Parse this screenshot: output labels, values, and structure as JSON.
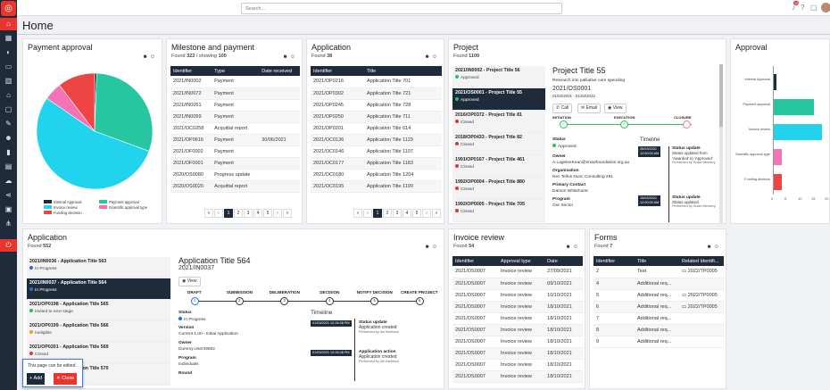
{
  "app": {
    "title": "Home"
  },
  "search": {
    "placeholder": "Search..."
  },
  "topbar": {
    "notification_count": "10"
  },
  "payment_approval": {
    "title": "Payment approval",
    "legend": [
      {
        "label": "Internal Approval",
        "color": "#1e2b3a"
      },
      {
        "label": "Payment approval",
        "color": "#26c6a0"
      },
      {
        "label": "Invoice review",
        "color": "#22d3ee"
      },
      {
        "label": "Scientific approval type",
        "color": "#f472b6"
      },
      {
        "label": "Funding decision",
        "color": "#ef4444"
      }
    ]
  },
  "milestone": {
    "title": "Milestone and payment",
    "found_label": "Found ",
    "found": "322",
    "showing_label": " / showing ",
    "showing": "100",
    "columns": [
      "Identifier",
      "Type",
      "Date received"
    ],
    "rows": [
      [
        "2021/IN0002",
        "Payment",
        ""
      ],
      [
        "2021/IN0072",
        "Payment",
        ""
      ],
      [
        "2021/IN0051",
        "Payment",
        ""
      ],
      [
        "2021/IN0059",
        "Payment",
        ""
      ],
      [
        "2021/OC0258",
        "Acquittal report",
        ""
      ],
      [
        "2021/OP0616",
        "Payment",
        "30/06/2021"
      ],
      [
        "2021/OF0002",
        "Payment",
        ""
      ],
      [
        "2021/OF0001",
        "Payment",
        ""
      ],
      [
        "2020/OS0080",
        "Progress update",
        ""
      ],
      [
        "2020/OS0020",
        "Acquittal report",
        ""
      ]
    ],
    "pages": [
      "«",
      "‹",
      "1",
      "2",
      "3",
      "4",
      "5",
      "›",
      "»"
    ]
  },
  "application": {
    "title": "Application",
    "found_label": "Found ",
    "found": "38",
    "columns": [
      "Identifier",
      "Title"
    ],
    "rows": [
      [
        "2021/OP0216",
        "Application Title 701"
      ],
      [
        "2021/OP0302",
        "Application Title 721"
      ],
      [
        "2021/OP0245",
        "Application Title 728"
      ],
      [
        "2021/OP0250",
        "Application Title 711"
      ],
      [
        "2021/OP0201",
        "Application Title 614"
      ],
      [
        "2021/OC0136",
        "Application Title 1123"
      ],
      [
        "2021/OC0146",
        "Application Title 1107"
      ],
      [
        "2021/OC0177",
        "Application Title 1183"
      ],
      [
        "2021/OC0180",
        "Application Title 1204"
      ],
      [
        "2021/OC0195",
        "Application Title 1199"
      ]
    ],
    "pages": [
      "«",
      "‹",
      "1",
      "2",
      "3",
      "4",
      "5",
      "›",
      "»"
    ]
  },
  "project": {
    "title": "Project",
    "found_label": "Found ",
    "found": "1109",
    "items": [
      {
        "name": "2021/IN0002 - Project Title 56",
        "status": "Approved",
        "color": "#22c55e"
      },
      {
        "name": "2021/OS0001 - Project Title 55",
        "status": "Approved",
        "color": "#22c55e"
      },
      {
        "name": "2016/OP0372 - Project Title 81",
        "status": "Closed",
        "color": "#e8352e"
      },
      {
        "name": "2018/OP0433 - Project Title 82",
        "status": "Closed",
        "color": "#e8352e"
      },
      {
        "name": "1991/OP0167 - Project Title 461",
        "status": "Closed",
        "color": "#e8352e"
      },
      {
        "name": "1992/OP0004 - Project Title 880",
        "status": "Closed",
        "color": "#e8352e"
      },
      {
        "name": "1992/OP0005 - Project Title 705",
        "status": "Closed",
        "color": "#e8352e"
      }
    ],
    "detail": {
      "title": "Project Title 55",
      "desc": "Research into palliative care spending",
      "id": "2021/OS0001",
      "dates": "01/03/2021 - 01/03/2022",
      "buttons": [
        "Call",
        "Email",
        "View"
      ],
      "stages": [
        "INITIATION",
        "EXECUTION",
        "CLOSURE"
      ],
      "status_label": "Status",
      "status": "Approved",
      "owner_label": "Owner",
      "owner": "A.LageleeKean@snowfoundation.org.au",
      "org_label": "Organisation",
      "org": "Nec Tellus Nunc Consulting 281",
      "contact_label": "Primary Contact",
      "contact": "Damon Whitehurst",
      "program_label": "Program",
      "program": "Our Sector",
      "timeline_label": "Timeline",
      "timeline": [
        {
          "date": "25/03/2021",
          "time": "12:00:00 AM",
          "title": "Status update",
          "text": "Status updated from 'Awarded' to 'Approved'",
          "by": "Performed by Susie Messery"
        },
        {
          "date": "15/03/2021",
          "time": "12:00:00 AM",
          "title": "Status update",
          "text": "Status updated",
          "by": "Performed by Susie Messery"
        }
      ]
    }
  },
  "approval": {
    "title": "Approval",
    "chart_data": {
      "type": "bar",
      "orientation": "horizontal",
      "categories": [
        "Internal Approval",
        "Payment approval",
        "Invoice review",
        "Scientific approval type",
        "Funding decision"
      ],
      "values": [
        1,
        15,
        18,
        3,
        3
      ],
      "colors": [
        "#1e2b3a",
        "#26c6a0",
        "#22d3ee",
        "#f472b6",
        "#ef4444"
      ],
      "xticks": [
        "0",
        "5",
        "10",
        "15",
        "20"
      ],
      "xlim": [
        0,
        20
      ]
    }
  },
  "application2": {
    "title": "Application",
    "found_label": "Found ",
    "found": "552",
    "items": [
      {
        "name": "2021/IN0036 - Application Title 563",
        "status": "In Progress",
        "color": "#1e6fd9"
      },
      {
        "name": "2021/IN0037 - Application Title 564",
        "status": "In Progress",
        "color": "#1e6fd9"
      },
      {
        "name": "2021/OP0198 - Application Title 565",
        "status": "Invited to next stage",
        "color": "#22c55e"
      },
      {
        "name": "2021/OP0199 - Application Title 566",
        "status": "Ineligible",
        "color": "#f59e0b"
      },
      {
        "name": "2021/OP0201 - Application Title 569",
        "status": "Closed",
        "color": "#e8352e"
      },
      {
        "name": "2021/OP0202 - Application Title 570",
        "status": "",
        "color": "#999"
      }
    ],
    "detail": {
      "title": "Application Title 564",
      "id": "2021/IN0037",
      "view": "View",
      "stages": [
        "DRAFT",
        "SUBMISSION",
        "DELIBERATION",
        "DECISION",
        "NOTIFY DECISION",
        "CREATE PROJECT"
      ],
      "stage_nums": [
        "1",
        "2",
        "3",
        "4",
        "5",
        "6"
      ],
      "status_label": "Status",
      "status": "In Progress",
      "version_label": "Version",
      "version": "Current 1.00 - Initial Application",
      "owner_label": "Owner",
      "owner": "Dummy.User49502",
      "program_label": "Program",
      "program": "Individuals",
      "round_label": "Round",
      "timeline_label": "Timeline",
      "timeline": [
        {
          "stamp": "01/03/2021 12:26:38 PM",
          "title": "Status update",
          "text": "Application created",
          "by": "Performed by Ilia Harbison"
        },
        {
          "stamp": "01/03/2021 12:26:38 PM",
          "title": "Application action",
          "text": "Application created",
          "by": "Performed by Ilia Harbison"
        }
      ]
    }
  },
  "invoice": {
    "title": "Invoice review",
    "found_label": "Found ",
    "found": "54",
    "columns": [
      "Identifier",
      "Approval type",
      "Date"
    ],
    "rows": [
      [
        "2021/OS0007",
        "Invoice review",
        "27/09/2021"
      ],
      [
        "2021/OS0007",
        "Invoice review",
        "09/10/2021"
      ],
      [
        "2021/OS0007",
        "Invoice review",
        "10/10/2021"
      ],
      [
        "2021/OS0007",
        "Invoice review",
        "18/10/2021"
      ],
      [
        "2021/OS0007",
        "Invoice review",
        "18/10/2021"
      ],
      [
        "2021/OS0007",
        "Invoice review",
        "18/10/2021"
      ],
      [
        "2021/OS0007",
        "Invoice review",
        "18/10/2021"
      ],
      [
        "2021/OS0007",
        "Invoice review",
        "18/10/2021"
      ],
      [
        "2021/OS0007",
        "Invoice review",
        "18/10/2021"
      ],
      [
        "2021/OS0007",
        "Invoice review",
        "18/10/2021"
      ]
    ]
  },
  "forms": {
    "title": "Forms",
    "found_label": "Found ",
    "found": "7",
    "columns": [
      "Identifier",
      "Title",
      "Related Identifi..."
    ],
    "rows": [
      [
        "2",
        "Test",
        "2022/TP0005"
      ],
      [
        "4",
        "Additional req...",
        ""
      ],
      [
        "5",
        "Additional req...",
        "2022/TP0005"
      ],
      [
        "6",
        "Additional req...",
        "2022/TP0005"
      ],
      [
        "7",
        "Additional req...",
        ""
      ],
      [
        "8",
        "Additional req...",
        ""
      ],
      [
        "9",
        "Additional req...",
        ""
      ]
    ]
  },
  "toast": {
    "message": "This page can be edited.",
    "add": "Add",
    "close": "Close"
  }
}
